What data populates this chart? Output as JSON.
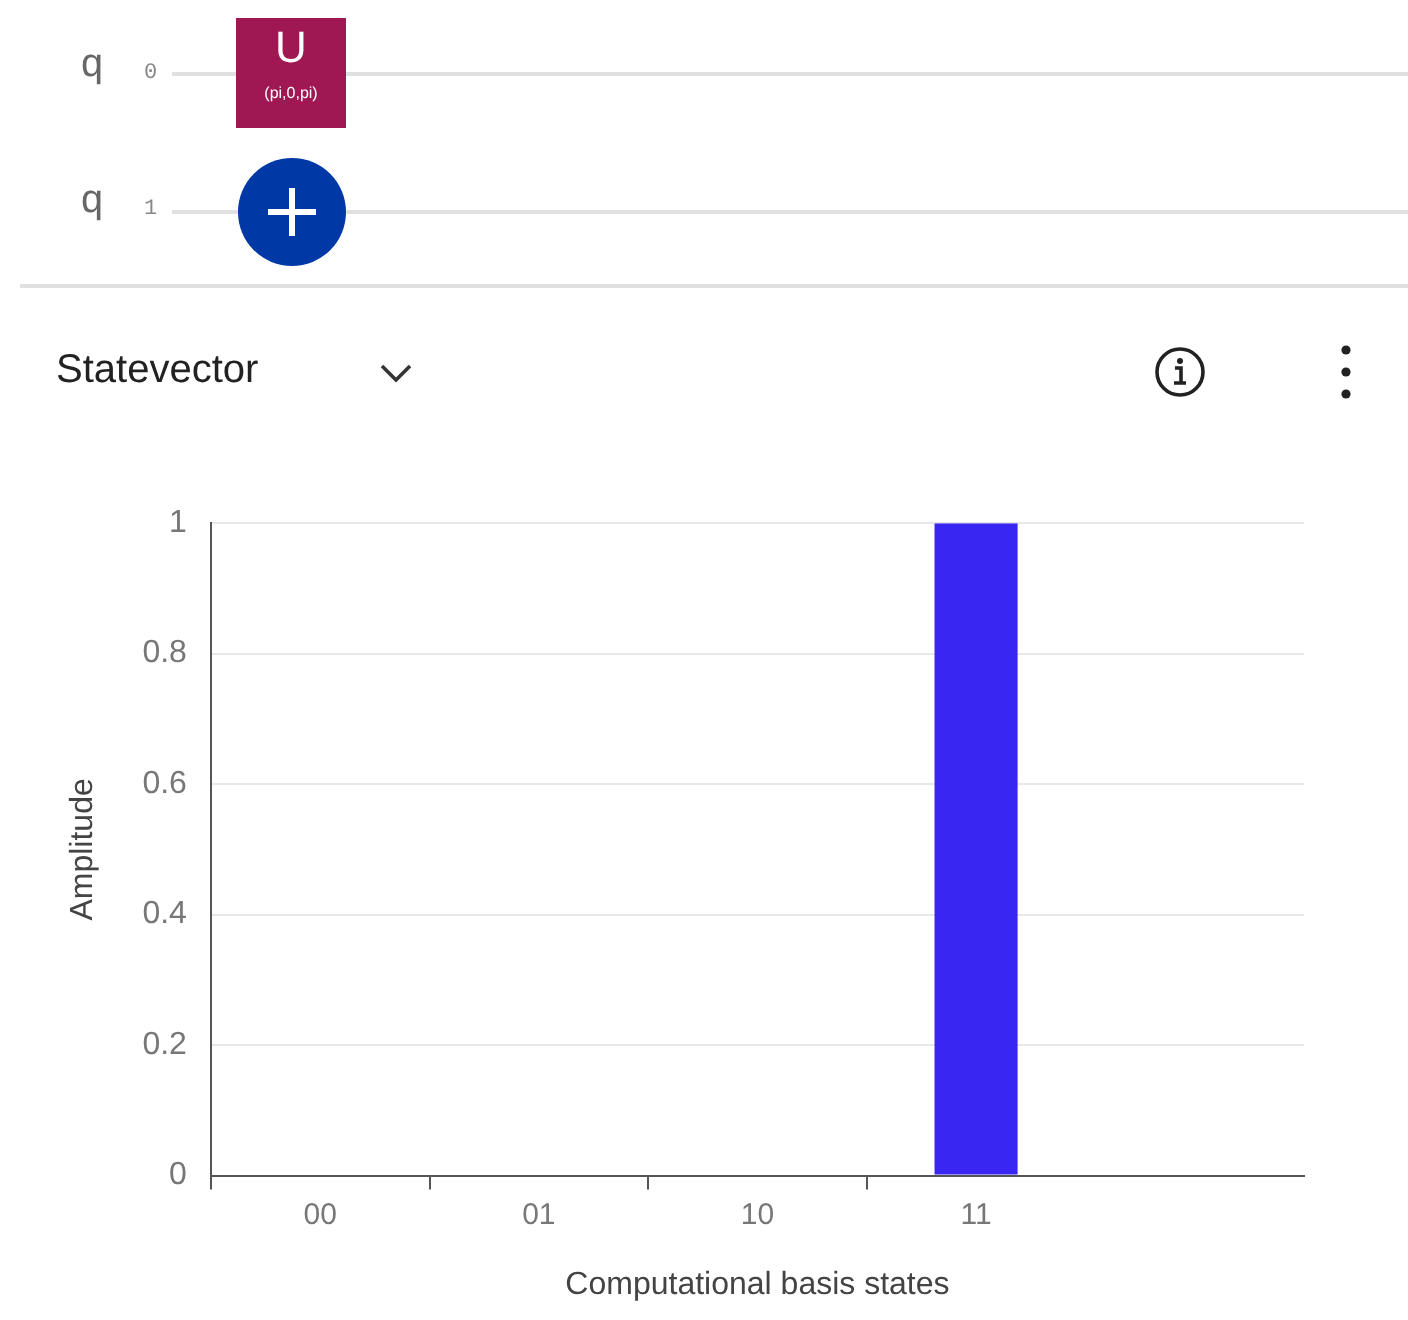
{
  "chart_data": {
    "type": "bar",
    "xlabel": "Computational basis states",
    "ylabel": "Amplitude",
    "categories": [
      "00",
      "01",
      "10",
      "11",
      null
    ],
    "values": [
      0,
      0,
      0,
      1,
      null
    ],
    "color": "#3926f2",
    "ylim": [
      0,
      1
    ],
    "yticks": [
      0,
      0.2,
      0.4,
      0.6,
      0.8,
      1
    ],
    "grid": "y",
    "legend": false,
    "annotations": [
      "q",
      "0",
      "q",
      "1",
      "U",
      "(pi,0,pi)",
      "Statevector"
    ]
  }
}
